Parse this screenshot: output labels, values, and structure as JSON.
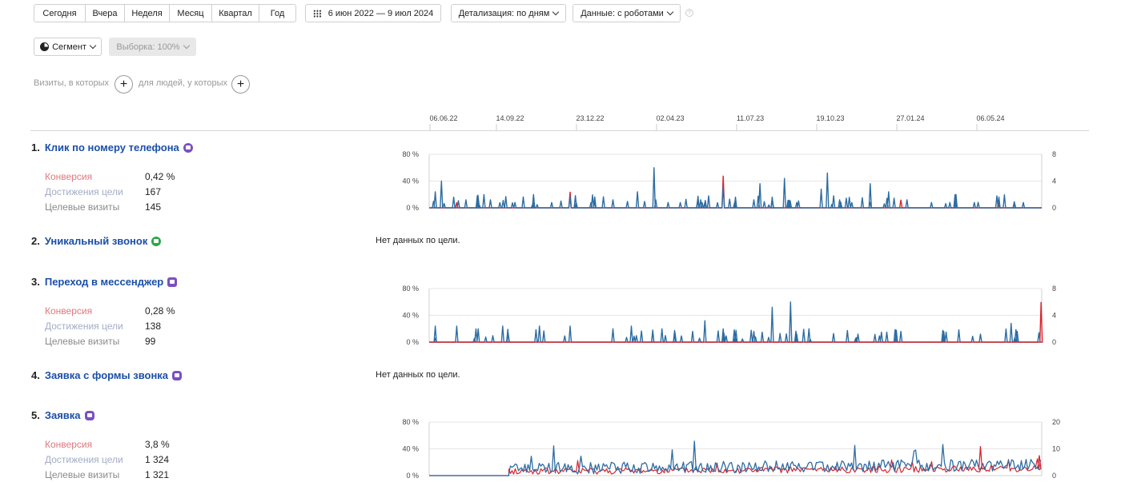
{
  "toolbar": {
    "periods": [
      "Сегодня",
      "Вчера",
      "Неделя",
      "Месяц",
      "Квартал",
      "Год"
    ],
    "date_range": "6 июн 2022 — 9 июл 2024",
    "detail": "Детализация: по дням",
    "data_filter": "Данные: с роботами",
    "help": "?"
  },
  "segment": {
    "label": "Сегмент",
    "sample": "Выборка: 100%"
  },
  "conditions": {
    "visits_label": "Визиты, в которых",
    "people_label": "для людей, у которых",
    "plus": "+"
  },
  "timeline": {
    "ticks": [
      {
        "label": "06.06.22",
        "color": "#444"
      },
      {
        "label": "14.09.22",
        "color": "#444"
      },
      {
        "label": "23.12.22",
        "color": "#444"
      },
      {
        "label": "02.04.23",
        "color": "#c0333a"
      },
      {
        "label": "11.07.23",
        "color": "#444"
      },
      {
        "label": "19.10.23",
        "color": "#444"
      },
      {
        "label": "27.01.24",
        "color": "#c0333a"
      },
      {
        "label": "06.05.24",
        "color": "#444"
      }
    ]
  },
  "stat_labels": {
    "conversion": "Конверсия",
    "achievements": "Достижения цели",
    "visits": "Целевые визиты"
  },
  "no_data": "Нет данных по цели.",
  "goals": [
    {
      "num": "1.",
      "name": "Клик по номеру телефона",
      "icon": "viber-icon",
      "conversion": "0,42 %",
      "achievements": "167",
      "visits": "145"
    },
    {
      "num": "2.",
      "name": "Уникальный звонок",
      "icon": "whatsapp-icon"
    },
    {
      "num": "3.",
      "name": "Переход в мессенджер",
      "icon": "messenger-icon",
      "conversion": "0,28 %",
      "achievements": "138",
      "visits": "99"
    },
    {
      "num": "4.",
      "name": "Заявка с формы звонка",
      "icon": "sms-icon"
    },
    {
      "num": "5.",
      "name": "Заявка",
      "icon": "sms-icon",
      "conversion": "3,8 %",
      "achievements": "1 324",
      "visits": "1 321"
    }
  ],
  "charts": [
    {
      "left_ticks": [
        "80 %",
        "40 %",
        "0 %"
      ],
      "right_ticks": [
        "8",
        "4",
        "0"
      ],
      "blue": [
        [
          0.01,
          0.3
        ],
        [
          0.02,
          0.5
        ],
        [
          0.04,
          0.2
        ],
        [
          0.06,
          0.15
        ],
        [
          0.08,
          0.2
        ],
        [
          0.1,
          0.15
        ],
        [
          0.14,
          0.1
        ],
        [
          0.17,
          0.1
        ],
        [
          0.2,
          0.1
        ],
        [
          0.24,
          0.1
        ],
        [
          0.27,
          0.1
        ],
        [
          0.3,
          0.15
        ],
        [
          0.34,
          0.3
        ],
        [
          0.37,
          0.15
        ],
        [
          0.39,
          0.1
        ],
        [
          0.41,
          0.1
        ],
        [
          0.45,
          0.1
        ],
        [
          0.5,
          0.2
        ],
        [
          0.53,
          0.15
        ],
        [
          0.56,
          0.2
        ],
        [
          0.6,
          0.1
        ],
        [
          0.64,
          0.35
        ],
        [
          0.67,
          0.15
        ],
        [
          0.69,
          0.1
        ],
        [
          0.72,
          0.1
        ],
        [
          0.75,
          0.3
        ],
        [
          0.78,
          0.15
        ],
        [
          0.82,
          0.1
        ],
        [
          0.85,
          0.1
        ],
        [
          0.89,
          0.1
        ],
        [
          0.93,
          0.15
        ],
        [
          0.97,
          0.1
        ]
      ],
      "red": [
        [
          0.045,
          0.1
        ],
        [
          0.23,
          0.3
        ],
        [
          0.48,
          0.6
        ],
        [
          0.5,
          0.15
        ],
        [
          0.77,
          0.15
        ],
        [
          0.93,
          0.05
        ]
      ],
      "peaks": [
        [
          0.367,
          0.75
        ],
        [
          0.48,
          0.4
        ],
        [
          0.54,
          0.45
        ],
        [
          0.58,
          0.55
        ],
        [
          0.65,
          0.65
        ],
        [
          0.72,
          0.45
        ],
        [
          0.86,
          0.25
        ],
        [
          0.93,
          0.2
        ]
      ]
    },
    {
      "left_ticks": [
        "80 %",
        "40 %",
        "0 %"
      ],
      "right_ticks": [
        "8",
        "4",
        "0"
      ],
      "blue": [
        [
          0.01,
          0.3
        ],
        [
          0.045,
          0.3
        ],
        [
          0.08,
          0.25
        ],
        [
          0.12,
          0.3
        ],
        [
          0.18,
          0.3
        ],
        [
          0.23,
          0.3
        ],
        [
          0.3,
          0.25
        ],
        [
          0.38,
          0.25
        ],
        [
          0.43,
          0.2
        ],
        [
          0.48,
          0.25
        ],
        [
          0.53,
          0.2
        ],
        [
          0.6,
          0.15
        ],
        [
          0.62,
          0.25
        ],
        [
          0.7,
          0.15
        ],
        [
          0.77,
          0.2
        ],
        [
          0.84,
          0.2
        ],
        [
          0.9,
          0.15
        ],
        [
          0.96,
          0.2
        ]
      ],
      "red": [
        [
          0.999,
          0.75
        ]
      ],
      "peaks": [
        [
          0.56,
          0.65
        ],
        [
          0.59,
          0.75
        ],
        [
          0.45,
          0.4
        ],
        [
          0.33,
          0.3
        ],
        [
          0.95,
          0.35
        ]
      ]
    },
    {
      "left_ticks": [
        "80 %",
        "40 %",
        "0 %"
      ],
      "right_ticks": [
        "20",
        "10",
        "0"
      ]
    }
  ]
}
